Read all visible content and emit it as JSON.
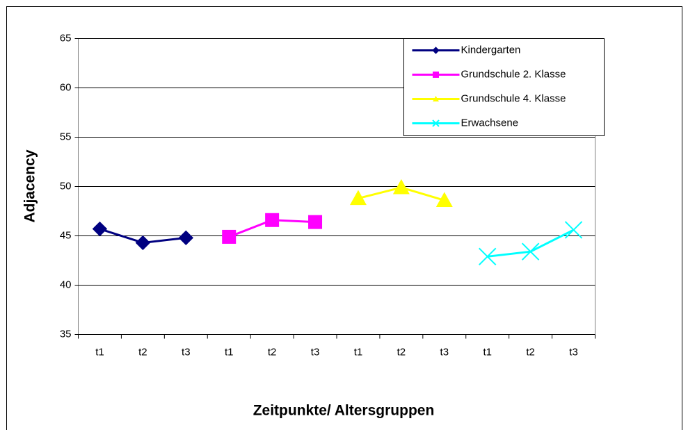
{
  "chart_data": {
    "type": "line",
    "xlabel": "Zeitpunkte/ Altersgruppen",
    "ylabel": "Adjacency",
    "categories": [
      "t1",
      "t2",
      "t3",
      "t1",
      "t2",
      "t3",
      "t1",
      "t2",
      "t3",
      "t1",
      "t2",
      "t3"
    ],
    "series": [
      {
        "name": "Kindergarten",
        "color": "#000080",
        "marker": "diamond",
        "values": [
          45.7,
          44.3,
          44.8,
          null,
          null,
          null,
          null,
          null,
          null,
          null,
          null,
          null
        ]
      },
      {
        "name": "Grundschule 2. Klasse",
        "color": "#ff00ff",
        "marker": "square",
        "values": [
          null,
          null,
          null,
          44.9,
          46.6,
          46.4,
          null,
          null,
          null,
          null,
          null,
          null
        ]
      },
      {
        "name": "Grundschule 4. Klasse",
        "color": "#ffff00",
        "marker": "triangle",
        "values": [
          null,
          null,
          null,
          null,
          null,
          null,
          48.8,
          49.9,
          48.6,
          null,
          null,
          null
        ]
      },
      {
        "name": "Erwachsene",
        "color": "#00ffff",
        "marker": "x",
        "values": [
          null,
          null,
          null,
          null,
          null,
          null,
          null,
          null,
          null,
          42.9,
          43.4,
          45.6
        ]
      }
    ],
    "ylim": [
      35,
      65
    ],
    "yticks": [
      35,
      40,
      45,
      50,
      55,
      60,
      65
    ],
    "grid": true,
    "legend": "top-right"
  }
}
